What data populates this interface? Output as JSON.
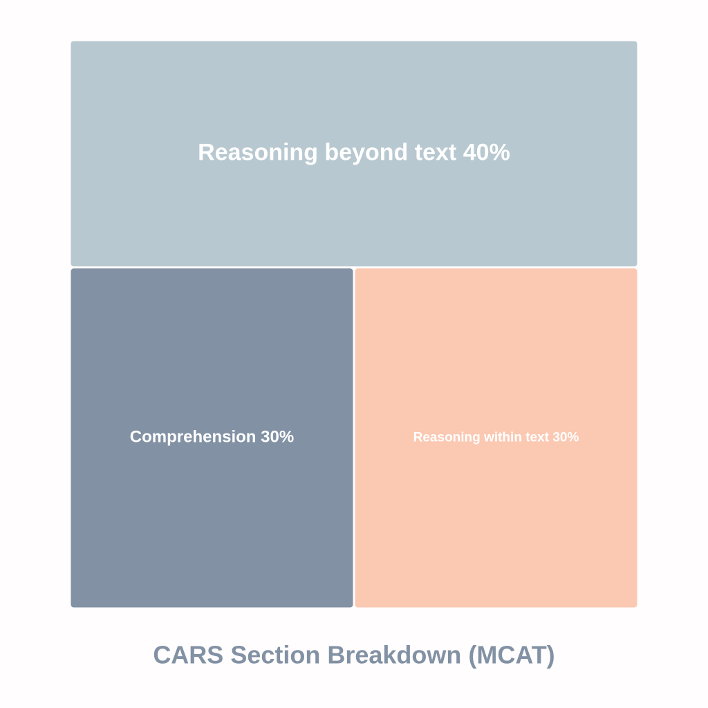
{
  "chart_data": {
    "type": "treemap",
    "title": "CARS Section Breakdown (MCAT)",
    "categories": [
      "Reasoning beyond text",
      "Comprehension",
      "Reasoning within text"
    ],
    "values": [
      40,
      30,
      30
    ],
    "value_labels": [
      "40%",
      "30%",
      "30%"
    ],
    "colors": [
      "#b8c8d0",
      "#8291a4",
      "#fbc8b2"
    ]
  }
}
